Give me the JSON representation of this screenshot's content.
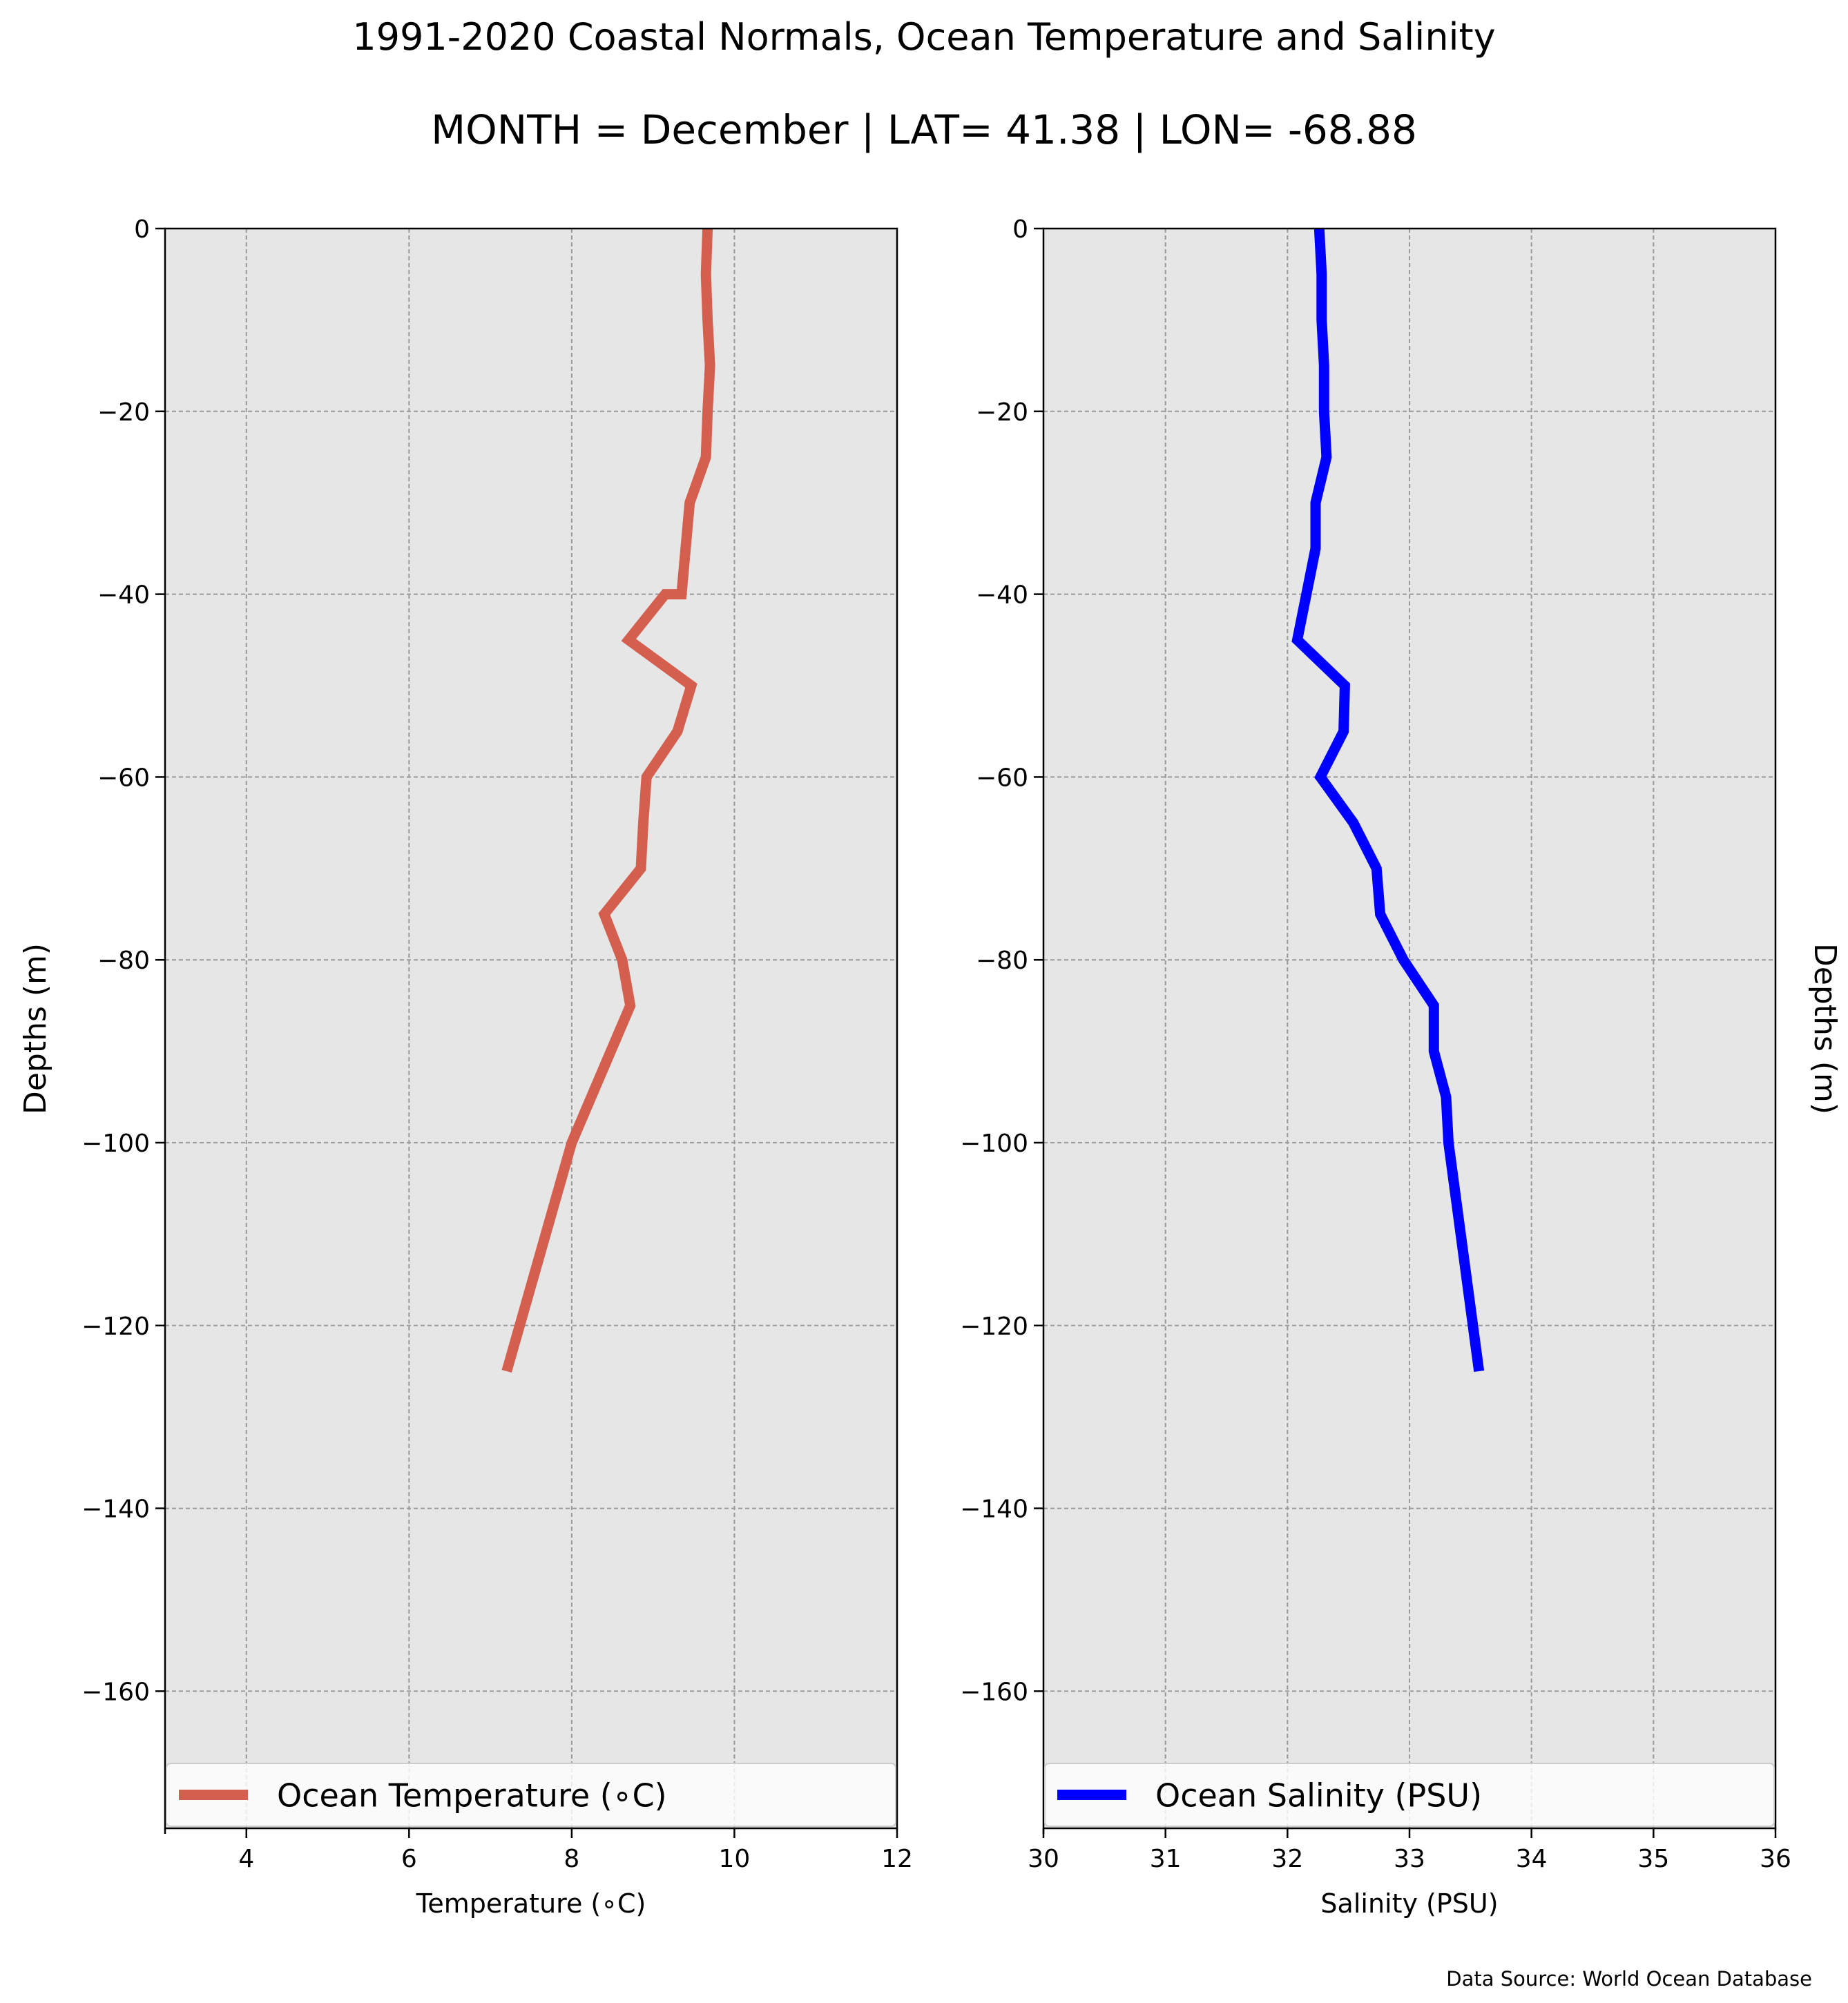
{
  "title": "1991-2020 Coastal Normals, Ocean Temperature and Salinity",
  "subtitle": "MONTH = December | LAT= 41.38 | LON= -68.88",
  "source": "Data Source: World Ocean Database",
  "chart_data": [
    {
      "type": "line",
      "name": "temperature-panel",
      "xlabel": "Temperature (∘C)",
      "ylabel": "Depths (m)",
      "xlim": [
        3,
        12
      ],
      "ylim": [
        -175,
        0
      ],
      "xticks": [
        4,
        6,
        8,
        10,
        12
      ],
      "yticks": [
        0,
        -20,
        -40,
        -60,
        -80,
        -100,
        -120,
        -140,
        -160
      ],
      "grid": true,
      "legend_position": "lower center",
      "series": [
        {
          "name": "Ocean Temperature (∘C)",
          "color": "#d45f4e",
          "x": [
            9.67,
            9.65,
            9.67,
            9.7,
            9.67,
            9.65,
            9.45,
            9.4,
            9.35,
            9.15,
            8.7,
            9.47,
            9.3,
            8.92,
            8.88,
            8.85,
            8.4,
            8.62,
            8.72,
            8.48,
            8.0,
            7.2
          ],
          "y": [
            0,
            -5,
            -10,
            -15,
            -20,
            -25,
            -30,
            -35,
            -40,
            -40,
            -45,
            -50,
            -55,
            -60,
            -65,
            -70,
            -75,
            -80,
            -85,
            -90,
            -100,
            -125
          ]
        }
      ]
    },
    {
      "type": "line",
      "name": "salinity-panel",
      "xlabel": "Salinity (PSU)",
      "ylabel": "Depths (m)",
      "xlim": [
        30,
        36
      ],
      "ylim": [
        -175,
        0
      ],
      "xticks": [
        30,
        31,
        32,
        33,
        34,
        35,
        36
      ],
      "yticks": [
        0,
        -20,
        -40,
        -60,
        -80,
        -100,
        -120,
        -140,
        -160
      ],
      "grid": true,
      "legend_position": "lower center",
      "series": [
        {
          "name": "Ocean Salinity (PSU)",
          "color": "#0000ff",
          "x": [
            32.26,
            32.28,
            32.28,
            32.3,
            32.3,
            32.32,
            32.23,
            32.23,
            32.23,
            32.08,
            32.47,
            32.46,
            32.27,
            32.54,
            32.73,
            32.76,
            32.95,
            33.2,
            33.2,
            33.3,
            33.32,
            33.57
          ],
          "y": [
            0,
            -5,
            -10,
            -15,
            -20,
            -25,
            -30,
            -35,
            -35,
            -45,
            -50,
            -55,
            -60,
            -65,
            -70,
            -75,
            -80,
            -85,
            -90,
            -95,
            -100,
            -125
          ]
        }
      ]
    }
  ]
}
